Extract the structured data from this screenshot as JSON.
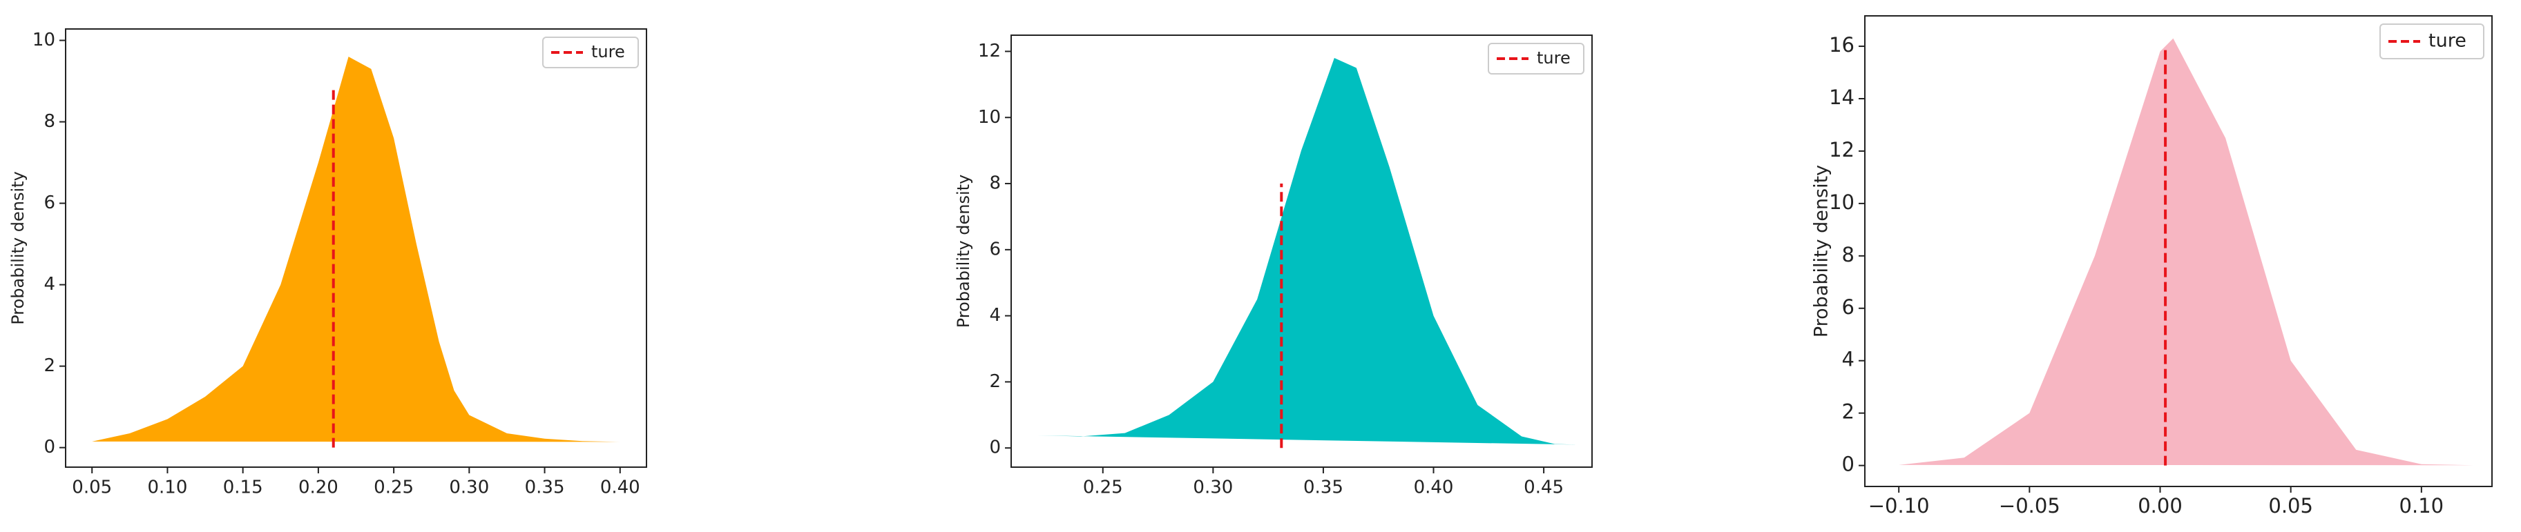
{
  "chart_data": [
    {
      "type": "area",
      "ylabel": "Probability density",
      "color": "#ffa500",
      "x": [
        0.05,
        0.075,
        0.1,
        0.125,
        0.15,
        0.175,
        0.2,
        0.22,
        0.235,
        0.25,
        0.265,
        0.28,
        0.29,
        0.3,
        0.325,
        0.35,
        0.375,
        0.4
      ],
      "values": [
        0.15,
        0.35,
        0.7,
        1.25,
        2.0,
        4.0,
        7.0,
        9.6,
        9.3,
        7.6,
        5.0,
        2.6,
        1.4,
        0.8,
        0.35,
        0.22,
        0.16,
        0.14
      ],
      "reference": {
        "name": "ture",
        "color": "#e8141a",
        "x": [
          0.21,
          0.21
        ],
        "values": [
          0,
          8.8
        ]
      },
      "legend": "upper right",
      "xlim": [
        0.0325,
        0.4175
      ],
      "ylim": [
        -0.48,
        10.28
      ],
      "xticks": [
        0.05,
        {
          "value": 0.1,
          "label": "0.10"
        },
        0.15,
        {
          "value": 0.2,
          "label": "0.20"
        },
        0.25,
        {
          "value": 0.3,
          "label": "0.30"
        },
        0.35,
        {
          "value": 0.4,
          "label": "0.40"
        }
      ],
      "yticks": [
        0,
        2,
        4,
        6,
        8,
        10
      ]
    },
    {
      "type": "area",
      "ylabel": "Probability density",
      "color": "#00bfbf",
      "x": [
        0.22,
        0.24,
        0.26,
        0.28,
        0.3,
        0.32,
        0.34,
        0.355,
        0.365,
        0.38,
        0.4,
        0.42,
        0.44,
        0.455,
        0.465
      ],
      "values": [
        0.38,
        0.35,
        0.45,
        1.0,
        2.0,
        4.5,
        9.0,
        11.8,
        11.5,
        8.5,
        4.0,
        1.3,
        0.35,
        0.12,
        0.1
      ],
      "reference": {
        "name": "ture",
        "color": "#e8141a",
        "x": [
          0.331,
          0.331
        ],
        "values": [
          0,
          8
        ]
      },
      "legend": "upper right",
      "xlim": [
        0.2084,
        0.4719
      ],
      "ylim": [
        -0.58,
        12.49
      ],
      "xticks": [
        0.25,
        {
          "value": 0.3,
          "label": "0.30"
        },
        0.35,
        {
          "value": 0.4,
          "label": "0.40"
        },
        0.45
      ],
      "yticks": [
        0,
        2,
        4,
        6,
        8,
        10,
        12
      ]
    },
    {
      "type": "area",
      "ylabel": "Probability density",
      "color": "#f7b6c2",
      "x": [
        -0.1,
        -0.075,
        -0.05,
        -0.025,
        0.0,
        0.005,
        0.025,
        0.05,
        0.075,
        0.1,
        0.12
      ],
      "values": [
        0.02,
        0.3,
        2.0,
        8.0,
        15.8,
        16.3,
        12.5,
        4.0,
        0.6,
        0.05,
        0.01
      ],
      "reference": {
        "name": "ture",
        "color": "#e8141a",
        "x": [
          0.002,
          0.002
        ],
        "values": [
          0,
          16
        ]
      },
      "legend": "upper right",
      "xlim": [
        -0.113,
        0.127
      ],
      "ylim": [
        -0.8,
        17.16
      ],
      "xticks": [
        {
          "value": -0.1,
          "label": "−0.10"
        },
        {
          "value": -0.05,
          "label": "−0.05"
        },
        {
          "value": 0.0,
          "label": "0.00"
        },
        0.05,
        {
          "value": 0.1,
          "label": "0.10"
        }
      ],
      "yticks": [
        0,
        2,
        4,
        6,
        8,
        10,
        12,
        14,
        16
      ]
    }
  ]
}
